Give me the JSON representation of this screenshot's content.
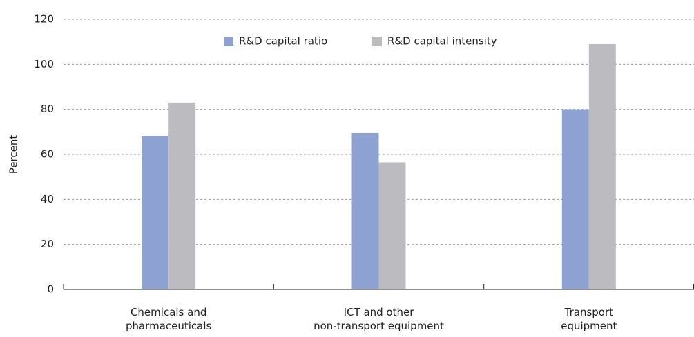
{
  "chart_data": {
    "type": "bar",
    "y_label": "Percent",
    "categories": [
      "Chemicals and\npharmaceuticals",
      "ICT and other\nnon-transport equipment",
      "Transport\nequipment"
    ],
    "series": [
      {
        "name": "R&D capital ratio",
        "color": "#8da2d3",
        "values": [
          68,
          69.5,
          80
        ]
      },
      {
        "name": "R&D capital intensity",
        "color": "#bcbcc0",
        "values": [
          83,
          56.5,
          109
        ]
      }
    ],
    "ylim": [
      0,
      120
    ],
    "yticks": [
      0,
      20,
      40,
      60,
      80,
      100,
      120
    ],
    "grid": true,
    "legend": "top"
  }
}
